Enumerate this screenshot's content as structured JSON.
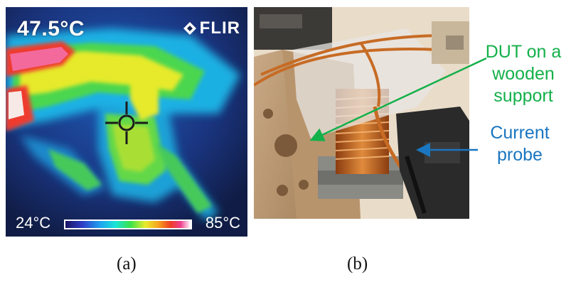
{
  "thermal": {
    "temperature_readout": "47.5°C",
    "brand": "FLIR",
    "scale_min": "24°C",
    "scale_max": "85°C",
    "scale_colors": [
      "#1a1464",
      "#2d3fc8",
      "#1fa4f0",
      "#19e3d6",
      "#3be24a",
      "#e9ec2b",
      "#f6a51f",
      "#ee3d25",
      "#ee3d8e",
      "#ffffff"
    ]
  },
  "photo": {
    "dut_label": "DUT on a wooden support",
    "probe_label": "Current probe",
    "dut_label_color": "#14b04a",
    "probe_label_color": "#1a76c0"
  },
  "captions": {
    "a": "(a)",
    "b": "(b)"
  }
}
